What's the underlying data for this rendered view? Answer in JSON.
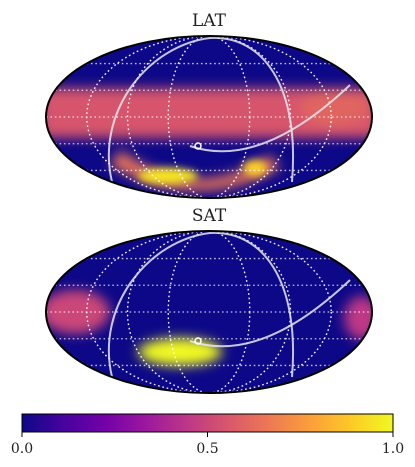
{
  "chart_data": [
    {
      "type": "heatmap",
      "projection": "mollweide",
      "title": "LAT",
      "colormap": "plasma",
      "range": [
        0.0,
        1.0
      ],
      "background_value": 0.0,
      "features": [
        {
          "name": "main-band",
          "value": 0.55
        },
        {
          "name": "lower-arc",
          "value": 0.65
        },
        {
          "name": "hotspot-left",
          "value": 0.95
        },
        {
          "name": "hotspot-right",
          "value": 0.9
        },
        {
          "name": "right-blob",
          "value": 0.6
        }
      ]
    },
    {
      "type": "heatmap",
      "projection": "mollweide",
      "title": "SAT",
      "colormap": "plasma",
      "range": [
        0.0,
        1.0
      ],
      "background_value": 0.0,
      "features": [
        {
          "name": "hotspot-center",
          "value": 1.0
        },
        {
          "name": "left-lobe",
          "value": 0.5
        },
        {
          "name": "right-edge",
          "value": 0.45
        }
      ]
    }
  ],
  "colorbar": {
    "ticks": [
      "0.0",
      "0.5",
      "1.0"
    ],
    "colors": [
      "#0d0887",
      "#46039f",
      "#7201a8",
      "#9c179e",
      "#bd3786",
      "#d8576b",
      "#ed7953",
      "#fb9f3a",
      "#fdca26",
      "#f0f921"
    ]
  }
}
